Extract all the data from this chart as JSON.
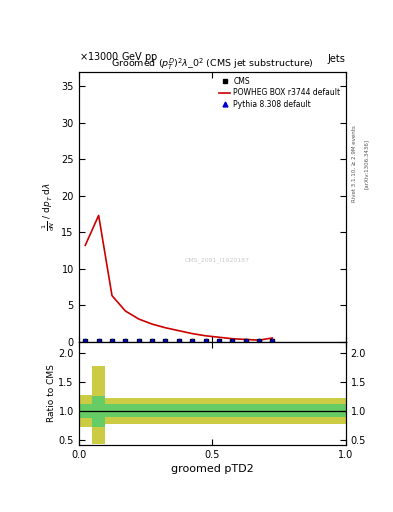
{
  "title": "Groomed $(p_T^D)^2\\lambda\\_0^2$ (CMS jet substructure)",
  "top_left_text": "13000 GeV pp",
  "top_right_text": "Jets",
  "watermark": "CMS_2091_I1920187",
  "right_label_top": "Rivet 3.1.10, ≥ 2.9M events",
  "right_label_bottom": "[arXiv:1306.3436]",
  "xlabel": "groomed pTD2",
  "ylabel_line1": "mathrm d$^2$N",
  "ylabel_line2": "mathrm d p_T mathrm d lambda",
  "ylabel_ratio": "Ratio to CMS",
  "ylim_main": [
    0,
    37
  ],
  "ylim_ratio": [
    0.4,
    2.2
  ],
  "yticks_main": [
    0,
    5,
    10,
    15,
    20,
    25,
    30,
    35
  ],
  "yticks_ratio": [
    0.5,
    1.0,
    1.5,
    2.0
  ],
  "xlim": [
    0.0,
    1.0
  ],
  "xticks": [
    0.0,
    0.5,
    1.0
  ],
  "cms_x": [
    0.025,
    0.075,
    0.125,
    0.175,
    0.225,
    0.275,
    0.325,
    0.375,
    0.425,
    0.475,
    0.525,
    0.575,
    0.625,
    0.675,
    0.725
  ],
  "cms_y": [
    0.15,
    0.15,
    0.15,
    0.15,
    0.15,
    0.15,
    0.15,
    0.15,
    0.15,
    0.15,
    0.15,
    0.15,
    0.15,
    0.15,
    0.15
  ],
  "cms_color": "#000000",
  "red_x": [
    0.025,
    0.075,
    0.125,
    0.175,
    0.225,
    0.275,
    0.325,
    0.375,
    0.425,
    0.475,
    0.525,
    0.575,
    0.625,
    0.675,
    0.725
  ],
  "red_y": [
    13.2,
    17.3,
    6.3,
    4.2,
    3.1,
    2.4,
    1.9,
    1.5,
    1.1,
    0.8,
    0.6,
    0.4,
    0.3,
    0.2,
    0.5
  ],
  "red_color": "#cc0000",
  "blue_x": [
    0.025,
    0.075,
    0.125,
    0.175,
    0.225,
    0.275,
    0.325,
    0.375,
    0.425,
    0.475,
    0.525,
    0.575,
    0.625,
    0.675,
    0.725
  ],
  "blue_y": [
    0.15,
    0.15,
    0.15,
    0.15,
    0.15,
    0.15,
    0.15,
    0.15,
    0.15,
    0.15,
    0.15,
    0.15,
    0.15,
    0.15,
    0.15
  ],
  "blue_color": "#0000cc",
  "ratio_bins": [
    0.0,
    0.05,
    0.1,
    0.15,
    0.2,
    0.25,
    1.0
  ],
  "ratio_green_lo": [
    0.88,
    0.72,
    0.9,
    0.9,
    0.9,
    0.9,
    0.9
  ],
  "ratio_green_hi": [
    1.12,
    1.25,
    1.12,
    1.12,
    1.12,
    1.12,
    1.12
  ],
  "ratio_yellow_lo": [
    0.72,
    0.42,
    0.78,
    0.78,
    0.78,
    0.78,
    0.78
  ],
  "ratio_yellow_hi": [
    1.28,
    1.78,
    1.22,
    1.22,
    1.22,
    1.22,
    1.22
  ],
  "green_color": "#66cc66",
  "yellow_color": "#cccc44",
  "legend_cms": "CMS",
  "legend_red": "POWHEG BOX r3744 default",
  "legend_blue": "Pythia 8.308 default",
  "bg_color": "#ffffff"
}
